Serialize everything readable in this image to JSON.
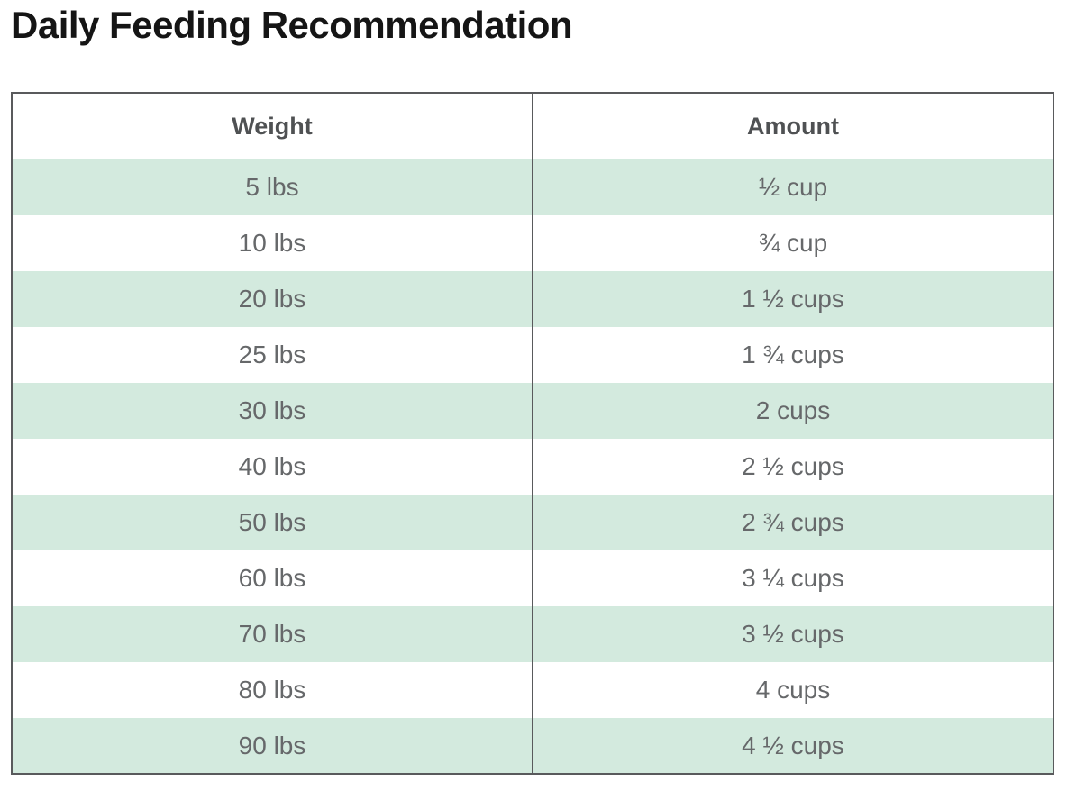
{
  "page": {
    "title": "Daily Feeding Recommendation"
  },
  "colors": {
    "stripe_green": "#d3eade",
    "table_border": "#595a5c",
    "header_text": "#4f5153",
    "cell_text": "#66686a",
    "title_text": "#151515",
    "page_background": "#ffffff"
  },
  "chart_data": {
    "type": "table",
    "title": "Daily Feeding Recommendation",
    "columns": [
      "Weight",
      "Amount"
    ],
    "rows": [
      [
        "5 lbs",
        "½ cup"
      ],
      [
        "10 lbs",
        "¾ cup"
      ],
      [
        "20 lbs",
        "1 ½ cups"
      ],
      [
        "25 lbs",
        "1 ¾ cups"
      ],
      [
        "30 lbs",
        "2 cups"
      ],
      [
        "40 lbs",
        "2 ½ cups"
      ],
      [
        "50 lbs",
        "2 ¾ cups"
      ],
      [
        "60 lbs",
        "3 ¼ cups"
      ],
      [
        "70 lbs",
        "3 ½ cups"
      ],
      [
        "80 lbs",
        "4 cups"
      ],
      [
        "90 lbs",
        "4 ½ cups"
      ]
    ],
    "layout": {
      "grid": "no horizontal rules; single vertical divider between columns; 2px outer border",
      "striping": "rows 1,3,5,7,9,11 have mint background starting with first data row"
    }
  }
}
